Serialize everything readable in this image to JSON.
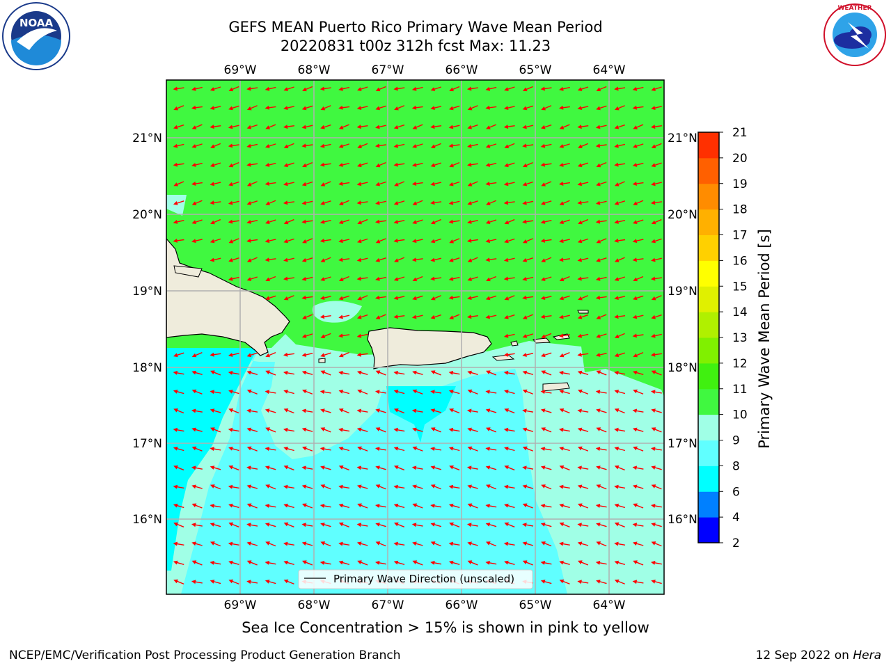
{
  "header": {
    "title_line1": "GEFS MEAN Puerto Rico Primary Wave Mean Period",
    "title_line2": "20220831 t00z 312h fcst   Max: 11.23"
  },
  "logos": {
    "left": {
      "icon": "noaa-logo",
      "text": "NOAA"
    },
    "right": {
      "icon": "nws-logo",
      "text": "NATIONAL WEATHER SERVICE"
    }
  },
  "map": {
    "lon_labels": [
      "69°W",
      "68°W",
      "67°W",
      "66°W",
      "65°W",
      "64°W"
    ],
    "lat_labels": [
      "21°N",
      "20°N",
      "19°N",
      "18°N",
      "17°N",
      "16°N"
    ],
    "legend_label": "Primary Wave Direction (unscaled)",
    "arrow_color": "#ff0000",
    "land_color": "#efecdc"
  },
  "colorbar": {
    "label": "Primary Wave Mean Period [s]",
    "ticks": [
      "2",
      "4",
      "6",
      "8",
      "9",
      "10",
      "11",
      "12",
      "13",
      "14",
      "15",
      "16",
      "17",
      "18",
      "19",
      "20",
      "21"
    ],
    "colors": [
      "#0000ff",
      "#0080ff",
      "#00ffff",
      "#60ffff",
      "#a0ffe6",
      "#40f840",
      "#40f010",
      "#80f000",
      "#b0f000",
      "#e0f000",
      "#ffff00",
      "#ffd000",
      "#ffb000",
      "#ff8c00",
      "#ff6000",
      "#ff3000",
      "#ff0000"
    ]
  },
  "caption": "Sea Ice Concentration > 15% is shown in pink to yellow",
  "footer": {
    "left": "NCEP/EMC/Verification Post Processing Product Generation Branch",
    "right_prefix": "12 Sep 2022 on ",
    "right_host": "Hera"
  }
}
